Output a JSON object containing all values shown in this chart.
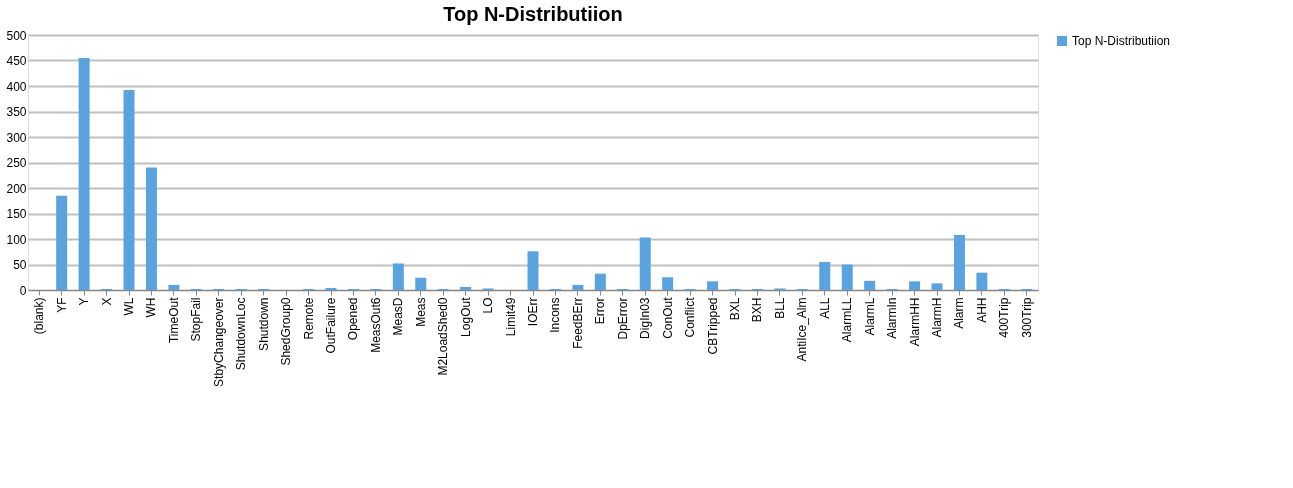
{
  "chart_data": {
    "type": "bar",
    "title": "Top N-Distributiion",
    "categories": [
      "(blank)",
      "YF",
      "Y",
      "X",
      "WL",
      "WH",
      "TimeOut",
      "StopFail",
      "StbyChangeover",
      "ShutdownLoc",
      "Shutdown",
      "ShedGroup0",
      "Remote",
      "OutFailure",
      "Opened",
      "MeasOut6",
      "MeasD",
      "Meas",
      "M2LoadShed0",
      "LogOut",
      "LO",
      "Limit49",
      "IOErr",
      "Incons",
      "FeedBErr",
      "Error",
      "DpError",
      "DigIn03",
      "ConOut",
      "Conflict",
      "CBTripped",
      "BXL",
      "BXH",
      "BLL",
      "AntiIce_Alm",
      "ALL",
      "AlarmLL",
      "AlarmL",
      "AlarmIn",
      "AlarmHH",
      "AlarmH",
      "Alarm",
      "AHH",
      "400Trip",
      "300Trip"
    ],
    "series": [
      {
        "name": "Top N-Distributiion",
        "color": "#5ba3de",
        "values": [
          0,
          185,
          455,
          2,
          392,
          240,
          10,
          2,
          2,
          2,
          2,
          0,
          2,
          4,
          2,
          2,
          52,
          24,
          2,
          6,
          3,
          0,
          76,
          2,
          10,
          32,
          2,
          103,
          25,
          2,
          17,
          2,
          2,
          3,
          2,
          55,
          50,
          18,
          2,
          17,
          13,
          108,
          34,
          2,
          2
        ]
      }
    ],
    "ylim": [
      0,
      500
    ],
    "yticks": [
      0,
      50,
      100,
      150,
      200,
      250,
      300,
      350,
      400,
      450,
      500
    ],
    "grid": "y",
    "legend": "right"
  }
}
